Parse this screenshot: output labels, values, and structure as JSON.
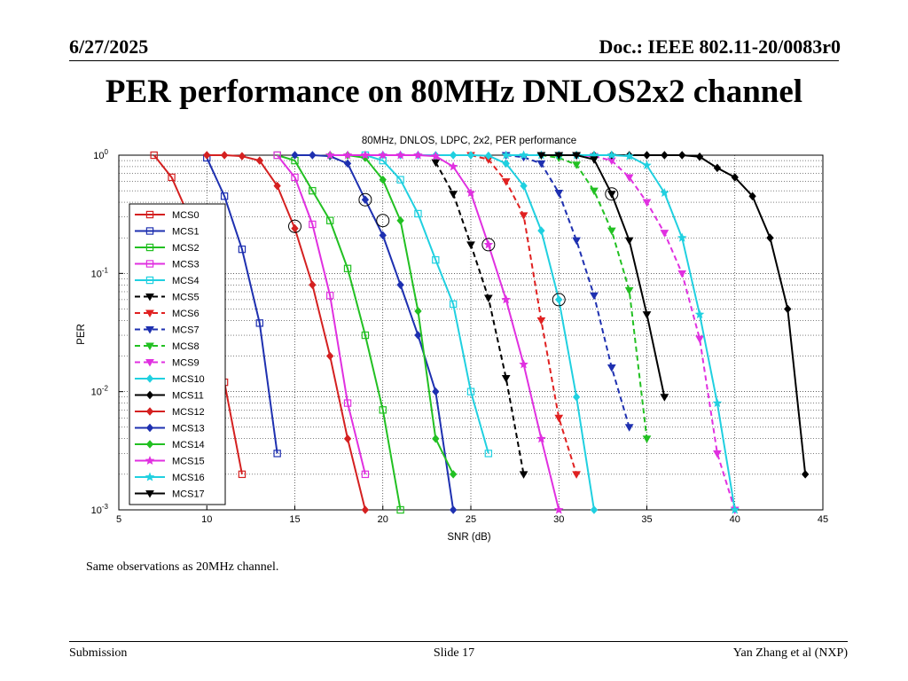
{
  "header": {
    "date": "6/27/2025",
    "doc": "Doc.: IEEE 802.11-20/0083r0"
  },
  "slide_title": "PER performance on 80MHz DNLOS2x2 channel",
  "note": "Same observations as 20MHz channel.",
  "footer": {
    "left": "Submission",
    "center": "Slide 17",
    "right": "Yan Zhang et al (NXP)"
  },
  "chart_data": {
    "type": "line",
    "title": "80MHz, DNLOS, LDPC, 2x2, PER performance",
    "xlabel": "SNR (dB)",
    "ylabel": "PER",
    "xlim": [
      5,
      45
    ],
    "ylim": [
      0.001,
      1
    ],
    "y_scale": "log",
    "grid": true,
    "legend_position": "left",
    "x_ticks": [
      "5",
      "10",
      "15",
      "20",
      "25",
      "30",
      "35",
      "40",
      "45"
    ],
    "y_ticks": [
      {
        "base": "10",
        "exp": "0",
        "value": 1
      },
      {
        "base": "10",
        "exp": "-1",
        "value": 0.1
      },
      {
        "base": "10",
        "exp": "-2",
        "value": 0.01
      },
      {
        "base": "10",
        "exp": "-3",
        "value": 0.001
      }
    ],
    "series": [
      {
        "name": "MCS0",
        "color": "#d42020",
        "dash": "solid",
        "marker": "square",
        "x": [
          7,
          8,
          9,
          10,
          11,
          12
        ],
        "y": [
          1,
          0.65,
          0.3,
          0.09,
          0.012,
          0.002
        ]
      },
      {
        "name": "MCS1",
        "color": "#1e30b0",
        "dash": "solid",
        "marker": "square",
        "x": [
          10,
          11,
          12,
          13,
          14
        ],
        "y": [
          0.95,
          0.45,
          0.16,
          0.038,
          0.003
        ]
      },
      {
        "name": "MCS2",
        "color": "#22c022",
        "dash": "solid",
        "marker": "square",
        "x": [
          14,
          15,
          16,
          17,
          18,
          19,
          20,
          21
        ],
        "y": [
          1,
          0.9,
          0.5,
          0.28,
          0.11,
          0.03,
          0.007,
          0.001
        ]
      },
      {
        "name": "MCS3",
        "color": "#e030e0",
        "dash": "solid",
        "marker": "square",
        "x": [
          14,
          15,
          16,
          17,
          18,
          19
        ],
        "y": [
          1,
          0.65,
          0.26,
          0.065,
          0.008,
          0.002
        ]
      },
      {
        "name": "MCS4",
        "color": "#20d0e0",
        "dash": "solid",
        "marker": "square",
        "x": [
          19,
          20,
          21,
          22,
          23,
          24,
          25,
          26
        ],
        "y": [
          1,
          0.9,
          0.62,
          0.32,
          0.13,
          0.055,
          0.01,
          0.003
        ]
      },
      {
        "name": "MCS5",
        "color": "#000000",
        "dash": "6,4",
        "marker": "tri-down",
        "x": [
          23,
          24,
          25,
          26,
          27,
          28
        ],
        "y": [
          0.87,
          0.47,
          0.175,
          0.062,
          0.013,
          0.002
        ]
      },
      {
        "name": "MCS6",
        "color": "#e02020",
        "dash": "6,4",
        "marker": "tri-down",
        "x": [
          25,
          26,
          27,
          28,
          29,
          30,
          31
        ],
        "y": [
          1,
          0.92,
          0.6,
          0.31,
          0.04,
          0.006,
          0.002
        ]
      },
      {
        "name": "MCS7",
        "color": "#1e30b0",
        "dash": "6,4",
        "marker": "tri-down",
        "x": [
          27,
          28,
          29,
          30,
          31,
          32,
          33,
          34
        ],
        "y": [
          1,
          0.96,
          0.85,
          0.48,
          0.19,
          0.065,
          0.016,
          0.005
        ]
      },
      {
        "name": "MCS8",
        "color": "#22c022",
        "dash": "6,4",
        "marker": "tri-down",
        "x": [
          29,
          30,
          31,
          32,
          33,
          34,
          35
        ],
        "y": [
          1,
          0.95,
          0.83,
          0.5,
          0.23,
          0.072,
          0.004
        ]
      },
      {
        "name": "MCS9",
        "color": "#e030e0",
        "dash": "6,4",
        "marker": "tri-down",
        "x": [
          31,
          32,
          33,
          34,
          35,
          36,
          37,
          38,
          39,
          40
        ],
        "y": [
          1,
          0.98,
          0.9,
          0.65,
          0.4,
          0.22,
          0.1,
          0.028,
          0.003,
          0.001
        ]
      },
      {
        "name": "MCS10",
        "color": "#20d0e0",
        "dash": "solid",
        "marker": "diamond",
        "x": [
          20,
          21,
          22,
          23,
          24,
          25,
          26,
          27,
          28,
          29,
          30,
          31,
          32
        ],
        "y": [
          1,
          1,
          1,
          1,
          1,
          1,
          0.99,
          0.85,
          0.55,
          0.23,
          0.06,
          0.009,
          0.001
        ]
      },
      {
        "name": "MCS11",
        "color": "#000000",
        "dash": "solid",
        "marker": "diamond",
        "x": [
          31,
          32,
          33,
          34,
          35,
          36,
          37,
          38,
          39,
          40,
          41,
          42,
          43,
          44
        ],
        "y": [
          1,
          1,
          1,
          1,
          1,
          1,
          1,
          0.97,
          0.78,
          0.65,
          0.45,
          0.2,
          0.05,
          0.002
        ]
      },
      {
        "name": "MCS12",
        "color": "#d42020",
        "dash": "solid",
        "marker": "diamond",
        "x": [
          10,
          11,
          12,
          13,
          14,
          15,
          16,
          17,
          18,
          19
        ],
        "y": [
          1,
          1,
          0.98,
          0.9,
          0.55,
          0.24,
          0.08,
          0.02,
          0.004,
          0.001
        ]
      },
      {
        "name": "MCS13",
        "color": "#1e30b0",
        "dash": "solid",
        "marker": "diamond",
        "x": [
          15,
          16,
          17,
          18,
          19,
          20,
          21,
          22,
          23,
          24
        ],
        "y": [
          1,
          1,
          0.98,
          0.85,
          0.42,
          0.21,
          0.08,
          0.03,
          0.01,
          0.001
        ]
      },
      {
        "name": "MCS14",
        "color": "#22c022",
        "dash": "solid",
        "marker": "diamond",
        "x": [
          17,
          18,
          19,
          20,
          21,
          22,
          23,
          24
        ],
        "y": [
          1,
          1,
          0.95,
          0.62,
          0.28,
          0.048,
          0.004,
          0.002
        ]
      },
      {
        "name": "MCS15",
        "color": "#e030e0",
        "dash": "solid",
        "marker": "star",
        "x": [
          17,
          18,
          19,
          20,
          21,
          22,
          23,
          24,
          25,
          26,
          27,
          28,
          29,
          30
        ],
        "y": [
          1,
          1,
          1,
          1,
          1,
          1,
          0.98,
          0.8,
          0.48,
          0.175,
          0.06,
          0.017,
          0.004,
          0.001
        ]
      },
      {
        "name": "MCS16",
        "color": "#20d0e0",
        "dash": "solid",
        "marker": "star",
        "x": [
          27,
          28,
          29,
          30,
          31,
          32,
          33,
          34,
          35,
          36,
          37,
          38,
          39,
          40
        ],
        "y": [
          1,
          1,
          1,
          1,
          1,
          1,
          1,
          0.98,
          0.82,
          0.48,
          0.2,
          0.045,
          0.008,
          0.001
        ]
      },
      {
        "name": "MCS17",
        "color": "#000000",
        "dash": "solid",
        "marker": "filled-tri-down",
        "x": [
          29,
          30,
          31,
          32,
          33,
          34,
          35,
          36
        ],
        "y": [
          1,
          1,
          1,
          0.92,
          0.47,
          0.19,
          0.045,
          0.009
        ]
      }
    ],
    "circled_points": [
      {
        "x": 15,
        "y": 0.25
      },
      {
        "x": 19,
        "y": 0.42
      },
      {
        "x": 20,
        "y": 0.28
      },
      {
        "x": 26,
        "y": 0.175
      },
      {
        "x": 30,
        "y": 0.06
      },
      {
        "x": 33,
        "y": 0.47
      }
    ]
  }
}
